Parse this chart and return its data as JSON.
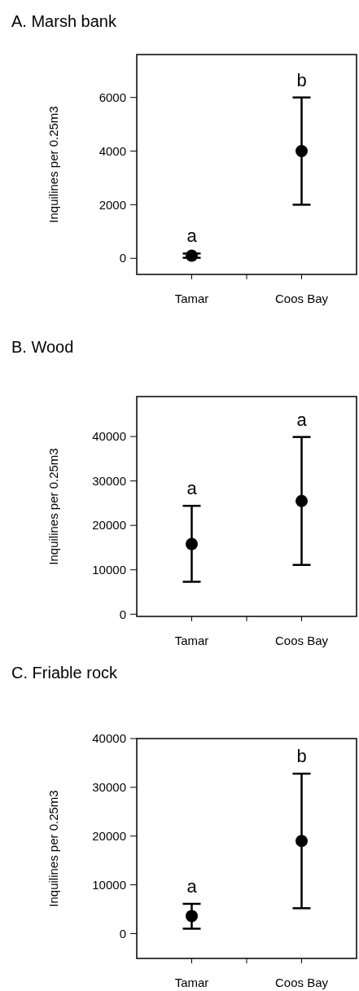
{
  "chart_data": [
    {
      "type": "scatter",
      "title": "A. Marsh bank",
      "ylabel": "Inquilines per 0.25m3",
      "categories": [
        "Tamar",
        "Coos Bay"
      ],
      "values": [
        100,
        4000
      ],
      "errors": [
        80,
        [
          2000,
          6000
        ]
      ],
      "color": "#000000",
      "marker": "circle",
      "ylim": [
        -600,
        7600
      ],
      "yticks": [
        0,
        2000,
        4000,
        6000
      ],
      "annotations": [
        "a",
        "b"
      ]
    },
    {
      "type": "scatter",
      "title": "B. Wood",
      "ylabel": "Inquilines  per 0.25m3",
      "categories": [
        "Tamar",
        "Coos Bay"
      ],
      "values": [
        15800,
        25500
      ],
      "errors": [
        [
          7300,
          24400
        ],
        [
          11100,
          39900
        ]
      ],
      "color": "#000000",
      "marker": "circle",
      "ylim": [
        -500,
        49000
      ],
      "yticks": [
        0,
        10000,
        20000,
        30000,
        40000
      ],
      "annotations": [
        "a",
        "a"
      ]
    },
    {
      "type": "scatter",
      "title": "C. Friable rock",
      "ylabel": "Inquilines  per 0.25m3",
      "categories": [
        "Tamar",
        "Coos Bay"
      ],
      "values": [
        3600,
        19000
      ],
      "errors": [
        [
          1000,
          6100
        ],
        [
          5200,
          32800
        ]
      ],
      "color": "#000000",
      "marker": "circle",
      "ylim": [
        -5100,
        40000
      ],
      "yticks": [
        0,
        10000,
        20000,
        30000,
        40000
      ],
      "annotations": [
        "a",
        "b"
      ]
    }
  ]
}
